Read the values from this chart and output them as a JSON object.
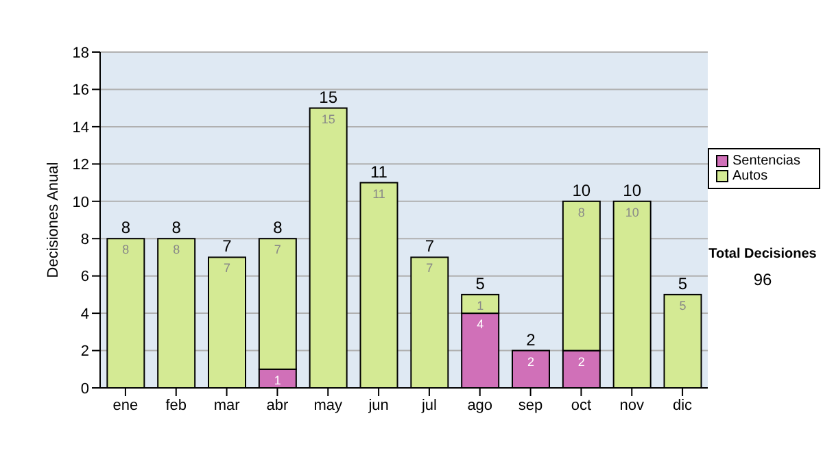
{
  "chart_data": {
    "type": "bar",
    "stacked": true,
    "ylabel": "Decisiones Anual",
    "categories": [
      "ene",
      "feb",
      "mar",
      "abr",
      "may",
      "jun",
      "jul",
      "ago",
      "sep",
      "oct",
      "nov",
      "dic"
    ],
    "series": [
      {
        "name": "Sentencias",
        "color": "#d070b8",
        "values": [
          0,
          0,
          0,
          1,
          0,
          0,
          0,
          4,
          2,
          2,
          0,
          0
        ],
        "value_labels": [
          null,
          null,
          null,
          "1",
          null,
          null,
          null,
          "4",
          "2",
          "2",
          null,
          null
        ]
      },
      {
        "name": "Autos",
        "color": "#d4ea94",
        "values": [
          8,
          8,
          7,
          7,
          15,
          11,
          7,
          1,
          0,
          8,
          10,
          5
        ],
        "value_labels": [
          "8",
          "8",
          "7",
          "7",
          "15",
          "11",
          "7",
          "1",
          null,
          "8",
          "10",
          "5"
        ]
      }
    ],
    "totals": [
      "8",
      "8",
      "7",
      "8",
      "15",
      "11",
      "7",
      "5",
      "2",
      "10",
      "10",
      "5"
    ],
    "ylim": [
      0,
      18
    ],
    "yticks": [
      0,
      2,
      4,
      6,
      8,
      10,
      12,
      14,
      16,
      18
    ],
    "grid": "y",
    "legend": "right",
    "annotations": [
      "Total Decisiones",
      "96"
    ]
  }
}
